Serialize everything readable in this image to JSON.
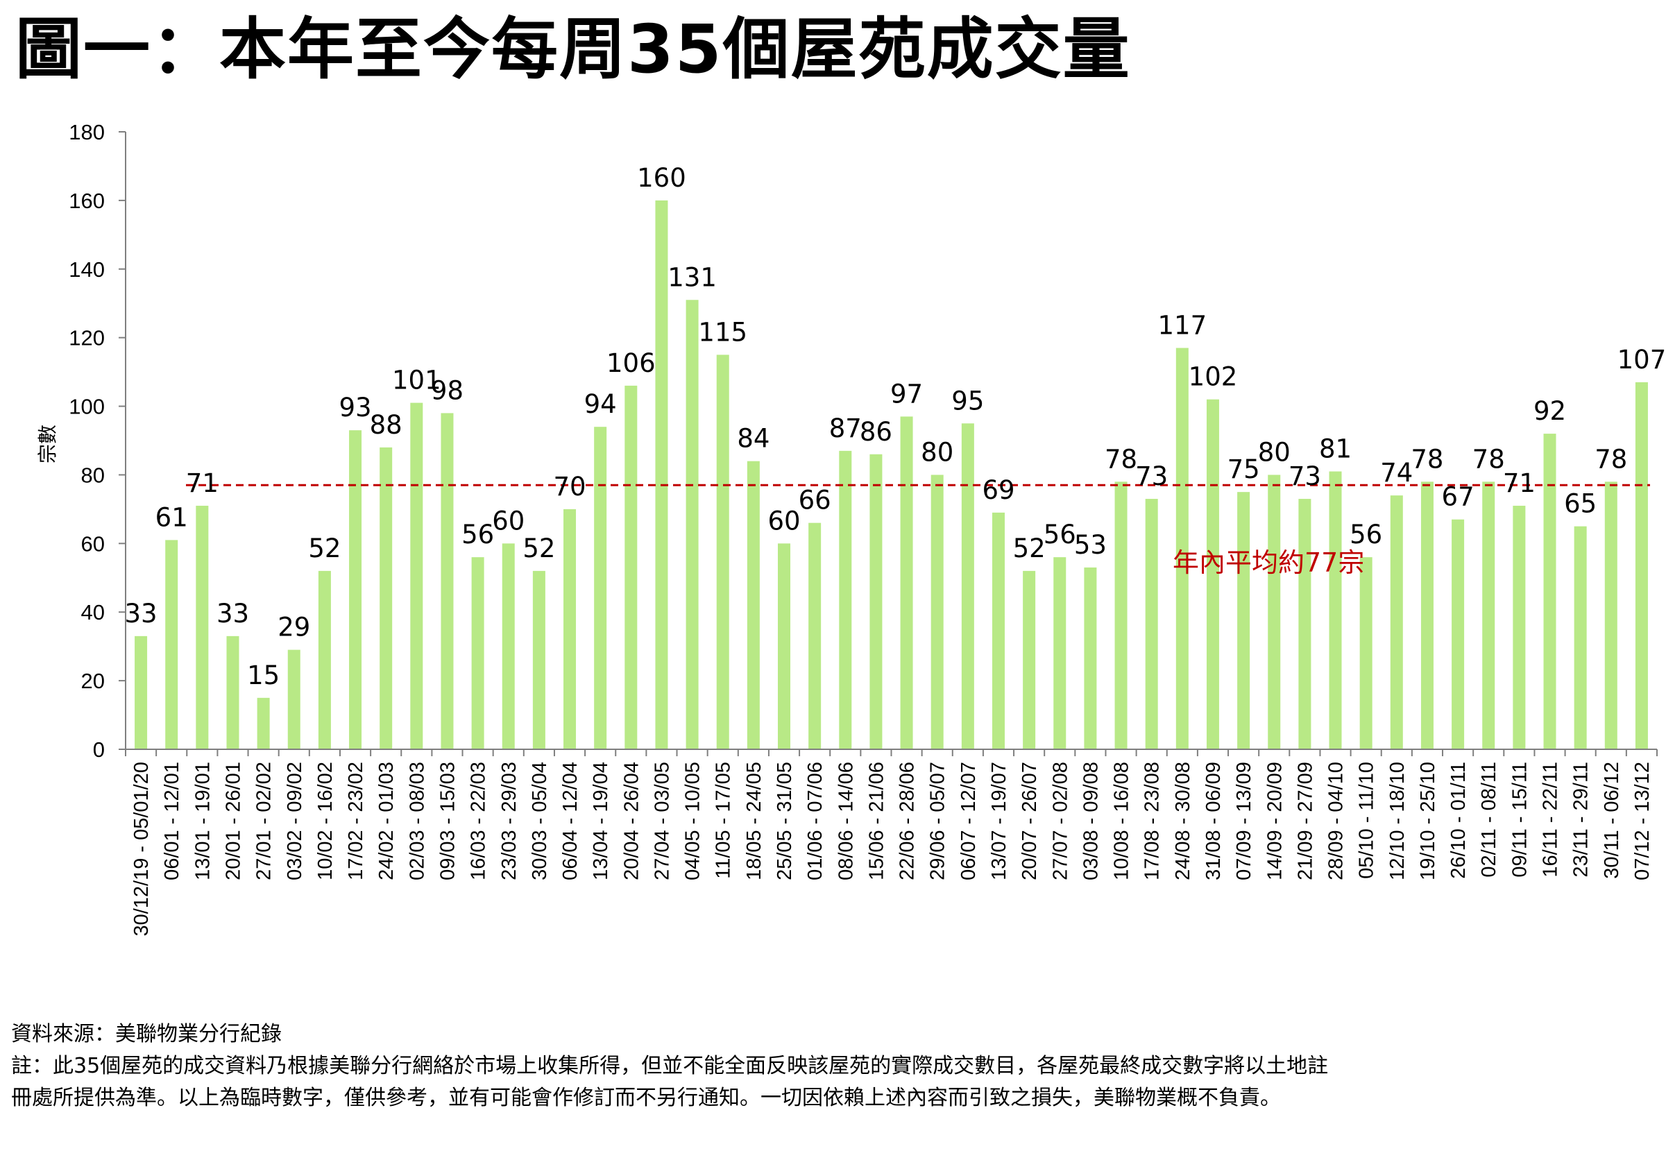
{
  "title": "圖一：本年至今每周35個屋苑成交量",
  "chart_data": {
    "type": "bar",
    "title": "圖一：本年至今每周35個屋苑成交量",
    "xlabel": "",
    "ylabel": "宗數",
    "ylim": [
      0,
      180
    ],
    "yticks": [
      0,
      20,
      40,
      60,
      80,
      100,
      120,
      140,
      160,
      180
    ],
    "grid": false,
    "bar_color": "#b8e986",
    "average": {
      "value": 77,
      "label": "年內平均約77宗",
      "color": "#c00000"
    },
    "categories": [
      "30/12/19 - 05/01/20",
      "06/01 - 12/01",
      "13/01 - 19/01",
      "20/01 - 26/01",
      "27/01 - 02/02",
      "03/02 - 09/02",
      "10/02 - 16/02",
      "17/02 - 23/02",
      "24/02 - 01/03",
      "02/03 - 08/03",
      "09/03 - 15/03",
      "16/03 - 22/03",
      "23/03 - 29/03",
      "30/03 - 05/04",
      "06/04 - 12/04",
      "13/04 - 19/04",
      "20/04 - 26/04",
      "27/04 - 03/05",
      "04/05 - 10/05",
      "11/05 - 17/05",
      "18/05 - 24/05",
      "25/05 - 31/05",
      "01/06 - 07/06",
      "08/06 - 14/06",
      "15/06 - 21/06",
      "22/06 - 28/06",
      "29/06 - 05/07",
      "06/07 - 12/07",
      "13/07 - 19/07",
      "20/07 - 26/07",
      "27/07 - 02/08",
      "03/08 - 09/08",
      "10/08 - 16/08",
      "17/08 - 23/08",
      "24/08 - 30/08",
      "31/08 - 06/09",
      "07/09 - 13/09",
      "14/09 - 20/09",
      "21/09 - 27/09",
      "28/09 - 04/10",
      "05/10 - 11/10",
      "12/10 - 18/10",
      "19/10 - 25/10",
      "26/10 - 01/11",
      "02/11 - 08/11",
      "09/11 - 15/11",
      "16/11 - 22/11",
      "23/11 - 29/11",
      "30/11 - 06/12",
      "07/12 - 13/12"
    ],
    "values": [
      33,
      61,
      71,
      33,
      15,
      29,
      52,
      93,
      88,
      101,
      98,
      56,
      60,
      52,
      70,
      94,
      106,
      160,
      131,
      115,
      84,
      60,
      66,
      87,
      86,
      97,
      80,
      95,
      69,
      52,
      56,
      53,
      78,
      73,
      117,
      102,
      75,
      80,
      73,
      81,
      56,
      74,
      78,
      67,
      78,
      71,
      92,
      65,
      78,
      107
    ]
  },
  "footer": {
    "source": "資料來源：美聯物業分行紀錄",
    "note_line1": "註：此35個屋苑的成交資料乃根據美聯分行網絡於市場上收集所得，但並不能全面反映該屋苑的實際成交數目，各屋苑最終成交數字將以土地註",
    "note_line2": "冊處所提供為準。以上為臨時數字，僅供參考，並有可能會作修訂而不另行通知。一切因依賴上述內容而引致之損失，美聯物業概不負責。"
  }
}
